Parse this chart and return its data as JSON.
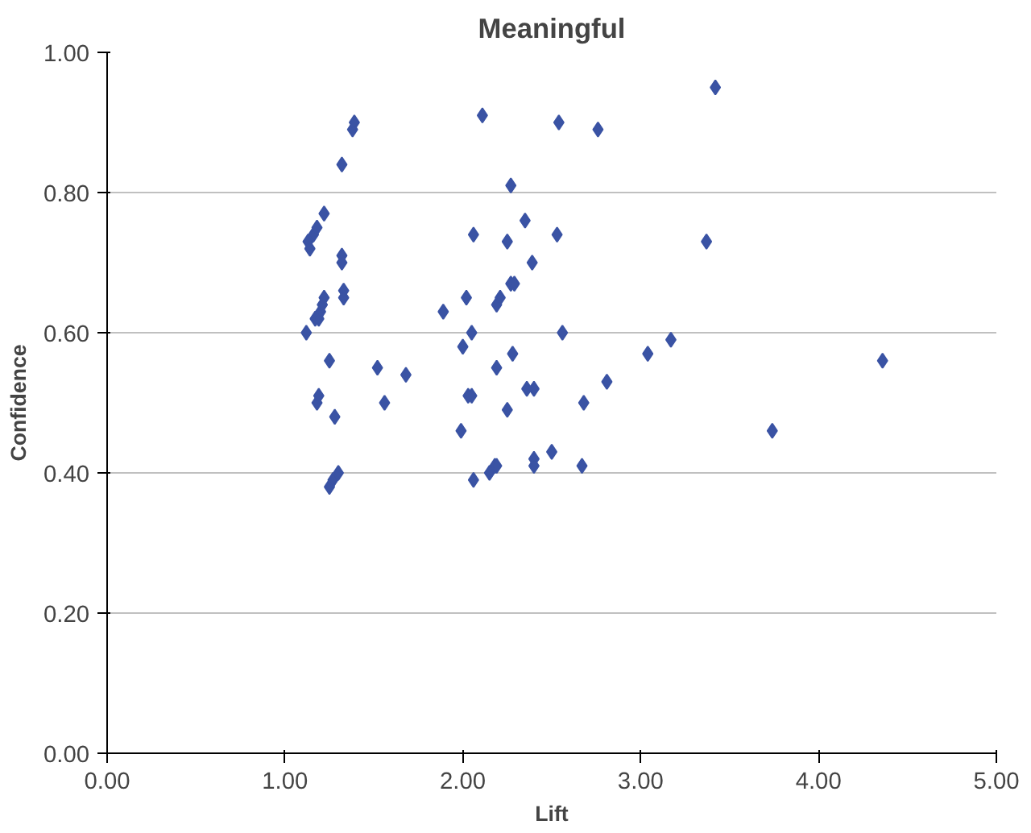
{
  "chart_data": {
    "type": "scatter",
    "title": "Meaningful",
    "xlabel": "Lift",
    "ylabel": "Confidence",
    "x": [
      1.13,
      1.14,
      1.16,
      1.18,
      1.22,
      1.12,
      1.17,
      1.19,
      1.2,
      1.21,
      1.22,
      1.18,
      1.19,
      1.25,
      1.28,
      1.25,
      1.27,
      1.3,
      1.32,
      1.38,
      1.39,
      1.32,
      1.32,
      1.33,
      1.33,
      1.52,
      1.56,
      1.68,
      2.11,
      2.54,
      2.76,
      3.42,
      2.27,
      2.35,
      2.06,
      2.25,
      2.53,
      2.39,
      2.27,
      2.29,
      1.89,
      2.02,
      2.19,
      2.21,
      2.0,
      2.05,
      2.56,
      1.99,
      2.03,
      2.05,
      2.19,
      2.28,
      2.36,
      2.4,
      2.25,
      2.06,
      2.15,
      2.18,
      2.19,
      2.4,
      2.4,
      2.5,
      2.67,
      2.68,
      2.81,
      3.04,
      3.17,
      3.37,
      3.74,
      4.36
    ],
    "series": [
      {
        "color": "#3a53a4",
        "values": [
          0.73,
          0.72,
          0.74,
          0.75,
          0.77,
          0.6,
          0.62,
          0.62,
          0.63,
          0.64,
          0.65,
          0.5,
          0.51,
          0.56,
          0.48,
          0.38,
          0.39,
          0.4,
          0.84,
          0.89,
          0.9,
          0.71,
          0.7,
          0.66,
          0.65,
          0.55,
          0.5,
          0.54,
          0.91,
          0.9,
          0.89,
          0.95,
          0.81,
          0.76,
          0.74,
          0.73,
          0.74,
          0.7,
          0.67,
          0.67,
          0.63,
          0.65,
          0.64,
          0.65,
          0.58,
          0.6,
          0.6,
          0.46,
          0.51,
          0.51,
          0.55,
          0.57,
          0.52,
          0.52,
          0.49,
          0.39,
          0.4,
          0.41,
          0.41,
          0.42,
          0.41,
          0.43,
          0.41,
          0.5,
          0.53,
          0.57,
          0.59,
          0.73,
          0.46,
          0.56
        ]
      }
    ],
    "xlim": [
      0,
      5
    ],
    "ylim": [
      0,
      1
    ],
    "xticks": [
      {
        "value": 0,
        "label": "0.00"
      },
      {
        "value": 1,
        "label": "1.00"
      },
      {
        "value": 2,
        "label": "2.00"
      },
      {
        "value": 3,
        "label": "3.00"
      },
      {
        "value": 4,
        "label": "4.00"
      },
      {
        "value": 5,
        "label": "5.00"
      }
    ],
    "yticks": [
      {
        "value": 0,
        "label": "0.00"
      },
      {
        "value": 0.2,
        "label": "0.20"
      },
      {
        "value": 0.4,
        "label": "0.40"
      },
      {
        "value": 0.6,
        "label": "0.60"
      },
      {
        "value": 0.8,
        "label": "0.80"
      },
      {
        "value": 1,
        "label": "1.00"
      }
    ],
    "grid": "y",
    "marker": "diamond"
  }
}
